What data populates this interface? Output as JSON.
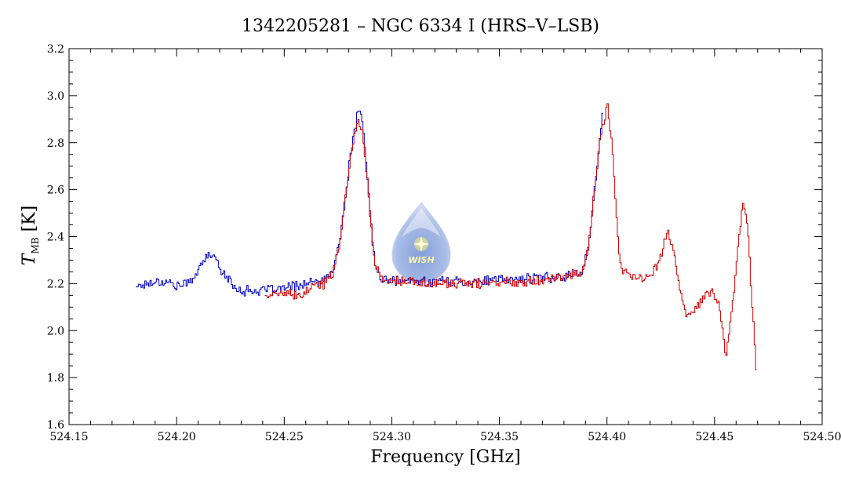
{
  "chart_data": {
    "type": "line",
    "title": "1342205281 – NGC 6334 I (HRS–V–LSB)",
    "xlabel": "Frequency [GHz]",
    "ylabel_main": "T",
    "ylabel_sub": "MB",
    "ylabel_unit": " [K]",
    "xlim": [
      524.15,
      524.5
    ],
    "ylim": [
      1.6,
      3.2
    ],
    "xticks": [
      524.15,
      524.2,
      524.25,
      524.3,
      524.35,
      524.4,
      524.45,
      524.5
    ],
    "xtick_labels": [
      "524.15",
      "524.20",
      "524.25",
      "524.30",
      "524.35",
      "524.40",
      "524.45",
      "524.50"
    ],
    "yticks": [
      1.6,
      1.8,
      2.0,
      2.2,
      2.4,
      2.6,
      2.8,
      3.0,
      3.2
    ],
    "ytick_labels": [
      "1.6",
      "1.8",
      "2.0",
      "2.2",
      "2.4",
      "2.6",
      "2.8",
      "3.0",
      "3.2"
    ],
    "grid": false,
    "series": [
      {
        "color": "#0000bb",
        "x_range": [
          524.181,
          524.398
        ],
        "points": [
          [
            524.181,
            2.19
          ],
          [
            524.186,
            2.2
          ],
          [
            524.19,
            2.21
          ],
          [
            524.195,
            2.21
          ],
          [
            524.2,
            2.19
          ],
          [
            524.205,
            2.2
          ],
          [
            524.21,
            2.26
          ],
          [
            524.215,
            2.33
          ],
          [
            524.218,
            2.3
          ],
          [
            524.222,
            2.24
          ],
          [
            524.226,
            2.19
          ],
          [
            524.23,
            2.17
          ],
          [
            524.24,
            2.17
          ],
          [
            524.25,
            2.18
          ],
          [
            524.26,
            2.2
          ],
          [
            524.268,
            2.21
          ],
          [
            524.272,
            2.25
          ],
          [
            524.275,
            2.35
          ],
          [
            524.278,
            2.55
          ],
          [
            524.281,
            2.78
          ],
          [
            524.284,
            2.93
          ],
          [
            524.286,
            2.9
          ],
          [
            524.288,
            2.7
          ],
          [
            524.29,
            2.45
          ],
          [
            524.292,
            2.27
          ],
          [
            524.295,
            2.22
          ],
          [
            524.3,
            2.21
          ],
          [
            524.32,
            2.21
          ],
          [
            524.34,
            2.21
          ],
          [
            524.36,
            2.22
          ],
          [
            524.38,
            2.23
          ],
          [
            524.388,
            2.25
          ],
          [
            524.391,
            2.35
          ],
          [
            524.394,
            2.6
          ],
          [
            524.397,
            2.85
          ],
          [
            524.398,
            2.99
          ]
        ]
      },
      {
        "color": "#cc0000",
        "x_range": [
          524.241,
          524.469
        ],
        "points": [
          [
            524.241,
            2.15
          ],
          [
            524.25,
            2.16
          ],
          [
            524.256,
            2.14
          ],
          [
            524.262,
            2.18
          ],
          [
            524.268,
            2.2
          ],
          [
            524.272,
            2.24
          ],
          [
            524.275,
            2.35
          ],
          [
            524.278,
            2.55
          ],
          [
            524.281,
            2.78
          ],
          [
            524.284,
            2.89
          ],
          [
            524.286,
            2.86
          ],
          [
            524.288,
            2.68
          ],
          [
            524.29,
            2.45
          ],
          [
            524.292,
            2.28
          ],
          [
            524.295,
            2.22
          ],
          [
            524.3,
            2.21
          ],
          [
            524.32,
            2.2
          ],
          [
            524.34,
            2.2
          ],
          [
            524.36,
            2.21
          ],
          [
            524.38,
            2.23
          ],
          [
            524.388,
            2.25
          ],
          [
            524.391,
            2.35
          ],
          [
            524.394,
            2.6
          ],
          [
            524.397,
            2.85
          ],
          [
            524.4,
            2.96
          ],
          [
            524.402,
            2.8
          ],
          [
            524.404,
            2.5
          ],
          [
            524.406,
            2.27
          ],
          [
            524.41,
            2.23
          ],
          [
            524.415,
            2.22
          ],
          [
            524.42,
            2.24
          ],
          [
            524.424,
            2.3
          ],
          [
            524.428,
            2.42
          ],
          [
            524.431,
            2.33
          ],
          [
            524.434,
            2.15
          ],
          [
            524.437,
            2.05
          ],
          [
            524.44,
            2.08
          ],
          [
            524.443,
            2.12
          ],
          [
            524.446,
            2.15
          ],
          [
            524.449,
            2.17
          ],
          [
            524.452,
            2.1
          ],
          [
            524.455,
            1.89
          ],
          [
            524.458,
            2.1
          ],
          [
            524.461,
            2.4
          ],
          [
            524.463,
            2.55
          ],
          [
            524.465,
            2.45
          ],
          [
            524.467,
            2.15
          ],
          [
            524.469,
            1.83
          ]
        ]
      }
    ]
  }
}
